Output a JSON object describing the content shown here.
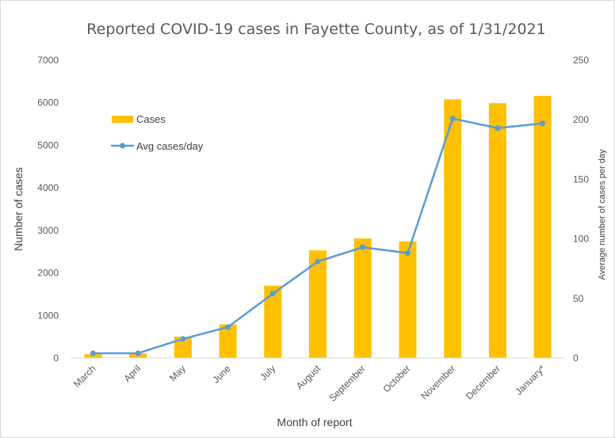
{
  "chart_data": {
    "type": "bar",
    "title": "Reported COVID-19 cases in Fayette County, as of 1/31/2021",
    "xlabel": "Month  of report",
    "ylabel": "Number  of cases",
    "y2label": "Average number of cases per day",
    "categories": [
      "March",
      "April",
      "May",
      "June",
      "July",
      "August",
      "September",
      "October",
      "November",
      "December",
      "January*"
    ],
    "ylim": [
      0,
      7000
    ],
    "yticks": [
      0,
      1000,
      2000,
      3000,
      4000,
      5000,
      6000,
      7000
    ],
    "y2lim": [
      0,
      250
    ],
    "y2ticks": [
      0,
      50,
      100,
      150,
      200,
      250
    ],
    "grid": false,
    "legend_position": "upper-left",
    "series": [
      {
        "name": "Cases",
        "type": "bar",
        "axis": "left",
        "color": "#FFC000",
        "values": [
          90,
          110,
          500,
          790,
          1700,
          2530,
          2810,
          2740,
          6080,
          5990,
          6160
        ]
      },
      {
        "name": "Avg cases/day",
        "type": "line",
        "axis": "right",
        "color": "#5B9BD5",
        "values": [
          4,
          4,
          16,
          26,
          54,
          81,
          93,
          88,
          201,
          193,
          197
        ]
      }
    ]
  }
}
